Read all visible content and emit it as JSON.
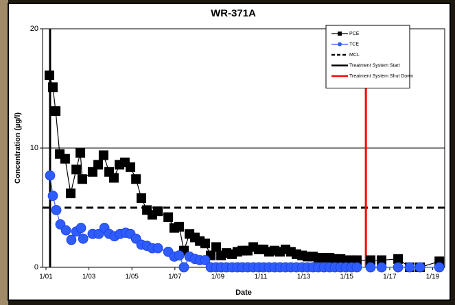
{
  "chart_data": {
    "type": "scatter-line",
    "title": "WR-371A",
    "x_label": "Date",
    "y_label": "Concentration (µg/l)",
    "xlim": [
      2000.84,
      2019.56
    ],
    "xticks": [
      {
        "value": 2001,
        "label": "1/01"
      },
      {
        "value": 2003,
        "label": "1/03"
      },
      {
        "value": 2005,
        "label": "1/05"
      },
      {
        "value": 2007,
        "label": "1/07"
      },
      {
        "value": 2009,
        "label": "1/09"
      },
      {
        "value": 2011,
        "label": "1/11"
      },
      {
        "value": 2013,
        "label": "1/13"
      },
      {
        "value": 2015,
        "label": "1/15"
      },
      {
        "value": 2017,
        "label": "1/17"
      },
      {
        "value": 2019,
        "label": "1/19"
      }
    ],
    "ylim": [
      0,
      20
    ],
    "yticks": [
      0,
      10,
      20
    ],
    "grid": true,
    "legend": "top-right",
    "series": [
      {
        "name": "PCE",
        "color": "#000000",
        "marker": "square",
        "x": [
          2001.16,
          2001.32,
          2001.45,
          2001.64,
          2001.89,
          2002.15,
          2002.41,
          2002.6,
          2002.69,
          2003.17,
          2003.43,
          2003.68,
          2003.94,
          2004.16,
          2004.42,
          2004.67,
          2004.93,
          2005.19,
          2005.44,
          2005.7,
          2005.95,
          2006.21,
          2006.69,
          2006.97,
          2007.2,
          2007.42,
          2007.68,
          2007.93,
          2008.16,
          2008.41,
          2008.67,
          2008.92,
          2009.15,
          2009.4,
          2009.66,
          2009.91,
          2010.14,
          2010.39,
          2010.65,
          2010.9,
          2011.13,
          2011.38,
          2011.64,
          2011.89,
          2012.15,
          2012.4,
          2012.66,
          2012.92,
          2013.17,
          2013.43,
          2013.68,
          2013.94,
          2014.2,
          2014.45,
          2014.71,
          2014.96,
          2015.22,
          2015.47,
          2016.11,
          2016.62,
          2017.39,
          2017.93,
          2018.41,
          2019.31
        ],
        "values": [
          16.1,
          15.1,
          13.1,
          9.5,
          9.1,
          6.2,
          8.2,
          9.6,
          7.4,
          8.0,
          8.6,
          9.4,
          8.0,
          7.5,
          8.6,
          8.8,
          8.4,
          7.4,
          5.8,
          4.8,
          4.4,
          4.7,
          4.2,
          3.3,
          3.4,
          1.4,
          2.8,
          2.5,
          2.2,
          2.0,
          1.0,
          1.7,
          1.0,
          1.2,
          1.1,
          1.3,
          1.4,
          1.4,
          1.7,
          1.5,
          1.5,
          1.3,
          1.4,
          1.3,
          1.5,
          1.3,
          1.1,
          1.0,
          0.9,
          0.9,
          0.8,
          0.8,
          0.8,
          0.7,
          0.7,
          0.6,
          0.6,
          0.6,
          0.6,
          0.6,
          0.7,
          0,
          0,
          0.5
        ]
      },
      {
        "name": "TCE",
        "color": "#2f5cff",
        "marker": "circle",
        "x": [
          2001.19,
          2001.32,
          2001.48,
          2001.67,
          2001.93,
          2002.18,
          2002.41,
          2002.63,
          2002.73,
          2003.17,
          2003.46,
          2003.72,
          2003.94,
          2004.19,
          2004.45,
          2004.71,
          2004.93,
          2005.19,
          2005.44,
          2005.7,
          2005.95,
          2006.21,
          2006.69,
          2006.97,
          2007.2,
          2007.42,
          2007.68,
          2007.93,
          2008.16,
          2008.41,
          2008.67,
          2008.92,
          2009.15,
          2009.4,
          2009.66,
          2009.91,
          2010.14,
          2010.39,
          2010.65,
          2010.9,
          2011.13,
          2011.38,
          2011.64,
          2011.89,
          2012.15,
          2012.4,
          2012.66,
          2012.92,
          2013.17,
          2013.43,
          2013.68,
          2013.94,
          2014.2,
          2014.45,
          2014.71,
          2014.96,
          2015.22,
          2015.47,
          2016.11,
          2016.62,
          2017.39,
          2017.93,
          2018.41,
          2019.31
        ],
        "values": [
          7.7,
          6.0,
          4.8,
          3.6,
          3.1,
          2.3,
          3.0,
          3.3,
          2.4,
          2.8,
          2.8,
          3.3,
          2.8,
          2.6,
          2.8,
          2.9,
          2.8,
          2.4,
          1.9,
          1.8,
          1.6,
          1.6,
          1.3,
          0.9,
          1.0,
          0,
          0.9,
          0.7,
          0.6,
          0.6,
          0,
          0,
          0,
          0,
          0,
          0,
          0,
          0,
          0,
          0,
          0,
          0,
          0,
          0,
          0,
          0,
          0,
          0,
          0,
          0,
          0,
          0,
          0,
          0,
          0,
          0,
          0,
          0,
          0,
          0,
          0,
          0,
          0,
          0
        ]
      }
    ],
    "reference_lines": [
      {
        "name": "MCL",
        "orientation": "horizontal",
        "value": 5,
        "color": "#000000",
        "dashed": true
      },
      {
        "name": "Treatment System Start",
        "orientation": "vertical",
        "value": 2001.19,
        "color": "#000000",
        "dashed": false
      },
      {
        "name": "Treatment System Shut Down",
        "orientation": "vertical",
        "value": 2015.89,
        "color": "#ff0000",
        "dashed": false
      }
    ]
  }
}
